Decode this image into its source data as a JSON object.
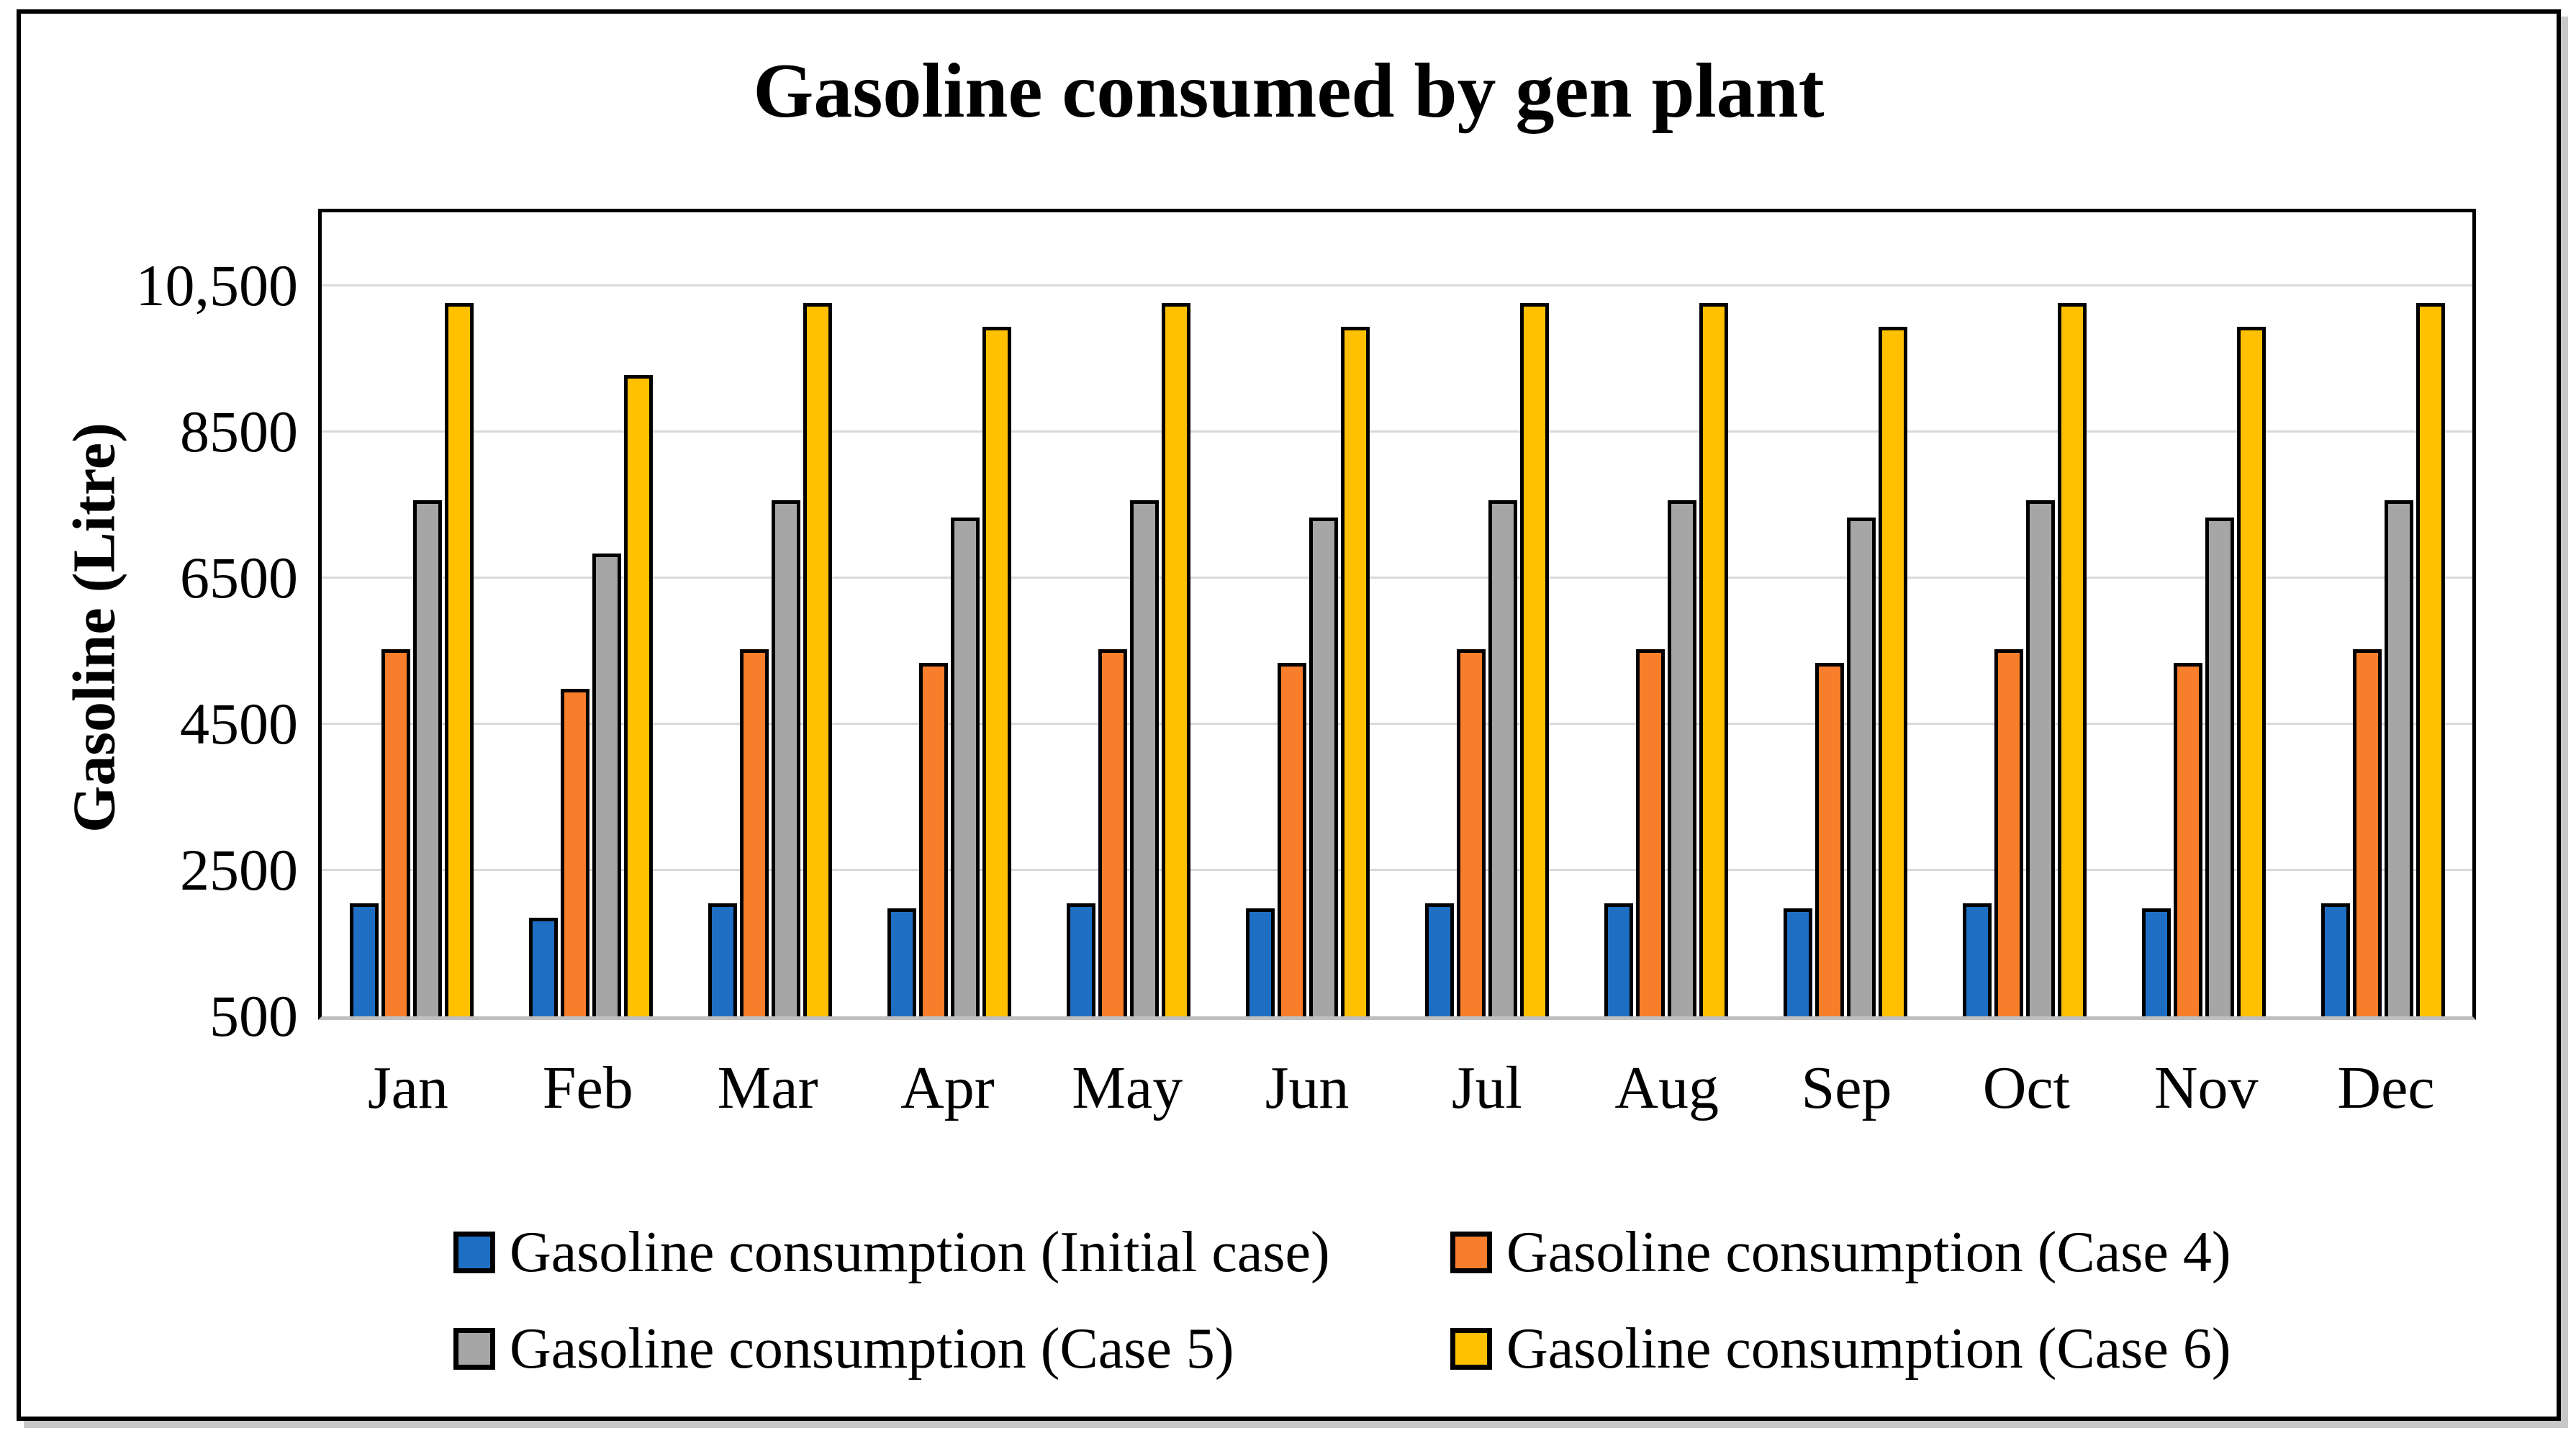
{
  "chart": {
    "title": "Gasoline consumed by gen plant",
    "ylabel": "Gasoline (Litre)"
  },
  "chart_data": {
    "type": "bar",
    "title": "Gasoline consumed by gen plant",
    "xlabel": "",
    "ylabel": "Gasoline (Litre)",
    "categories": [
      "Jan",
      "Feb",
      "Mar",
      "Apr",
      "May",
      "Jun",
      "Jul",
      "Aug",
      "Sep",
      "Oct",
      "Nov",
      "Dec"
    ],
    "series": [
      {
        "name": "Gasoline consumption (Initial case)",
        "color": "#1E6FC4",
        "values": [
          2050,
          1850,
          2050,
          1980,
          2050,
          1980,
          2050,
          2050,
          1980,
          2050,
          1980,
          2050
        ]
      },
      {
        "name": "Gasoline consumption (Case 4)",
        "color": "#F87E2B",
        "values": [
          5520,
          4980,
          5520,
          5340,
          5520,
          5340,
          5520,
          5520,
          5340,
          5520,
          5340,
          5520
        ]
      },
      {
        "name": "Gasoline consumption (Case 5)",
        "color": "#A6A6A6",
        "values": [
          7560,
          6830,
          7560,
          7320,
          7560,
          7320,
          7560,
          7560,
          7320,
          7560,
          7320,
          7560
        ]
      },
      {
        "name": "Gasoline consumption (Case 6)",
        "color": "#FFC000",
        "values": [
          10260,
          9270,
          10260,
          9930,
          10260,
          9930,
          10260,
          10260,
          9930,
          10260,
          9930,
          10260
        ]
      }
    ],
    "y_axis": {
      "min": 500,
      "max": 11500,
      "tick_interval": 2000,
      "tick_labels": [
        "500",
        "2500",
        "4500",
        "6500",
        "8500",
        "10,500"
      ]
    },
    "grid": true,
    "legend_position": "bottom",
    "styles": {
      "gridline_color": "#D9D9D9",
      "baseline_color": "#BFBFBF",
      "bar_outline_color": "#000000"
    }
  }
}
